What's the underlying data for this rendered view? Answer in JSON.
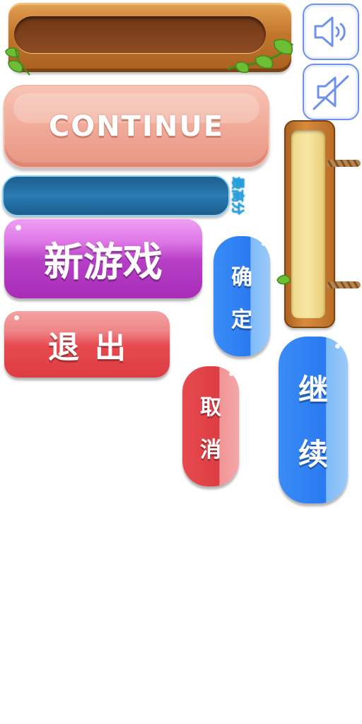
{
  "buttons": {
    "continue_label": "CONTINUE",
    "new_game_label": "新游戏",
    "quit_label": "退出",
    "confirm_chars": [
      "确",
      "定"
    ],
    "cancel_chars": [
      "取",
      "消"
    ],
    "continue_cn_chars": [
      "继",
      "续"
    ]
  },
  "score": {
    "label": "最高分"
  },
  "icons": {
    "sound_on": "speaker-on-icon",
    "sound_off": "speaker-muted-icon"
  },
  "colors": {
    "wood": "#c2772d",
    "continue_pink": "#f0a896",
    "score_blue": "#2b7bb2",
    "purple": "#b63fc6",
    "red": "#e64a4f",
    "blue": "#2a79f0"
  }
}
